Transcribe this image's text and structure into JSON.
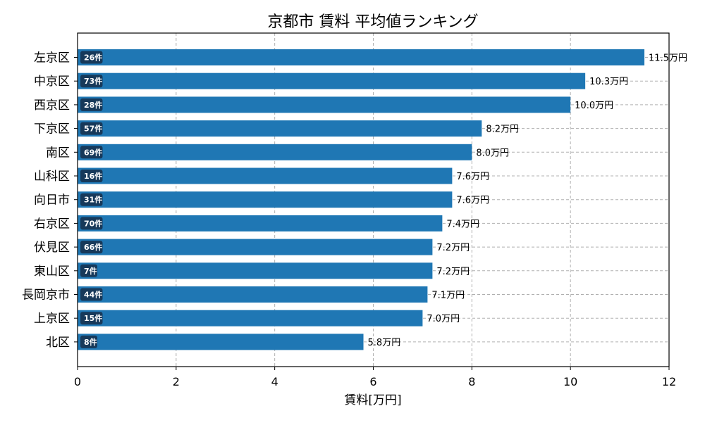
{
  "chart_data": {
    "type": "bar",
    "orientation": "horizontal",
    "title": "京都市 賃料 平均値ランキング",
    "xlabel": "賃料[万円]",
    "ylabel": "",
    "xlim": [
      0,
      12
    ],
    "xticks": [
      "0",
      "2",
      "4",
      "6",
      "8",
      "10",
      "12"
    ],
    "grid": true,
    "bar_color": "#1f77b4",
    "count_badge_color": "#17395a",
    "categories": [
      "左京区",
      "中京区",
      "西京区",
      "下京区",
      "南区",
      "山科区",
      "向日市",
      "右京区",
      "伏見区",
      "東山区",
      "長岡京市",
      "上京区",
      "北区"
    ],
    "values": [
      11.5,
      10.3,
      10.0,
      8.2,
      8.0,
      7.6,
      7.6,
      7.4,
      7.2,
      7.2,
      7.1,
      7.0,
      5.8
    ],
    "value_labels": [
      "11.5万円",
      "10.3万円",
      "10.0万円",
      "8.2万円",
      "8.0万円",
      "7.6万円",
      "7.6万円",
      "7.4万円",
      "7.2万円",
      "7.2万円",
      "7.1万円",
      "7.0万円",
      "5.8万円"
    ],
    "counts": [
      "26件",
      "73件",
      "28件",
      "57件",
      "69件",
      "16件",
      "31件",
      "70件",
      "66件",
      "7件",
      "44件",
      "15件",
      "8件"
    ]
  }
}
